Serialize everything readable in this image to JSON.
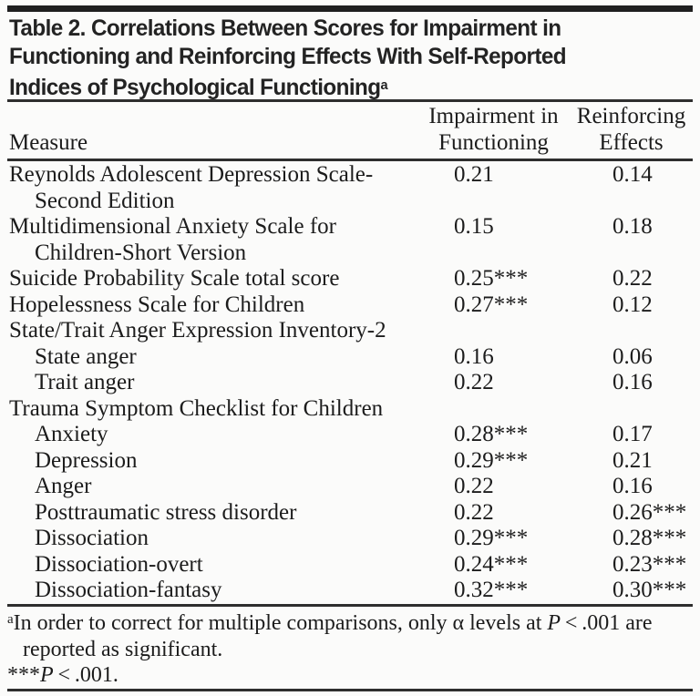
{
  "title": {
    "lines": [
      "Table 2. Correlations Between Scores for Impairment in",
      "Functioning and Reinforcing Effects With Self-Reported",
      "Indices of Psychological Functioning"
    ],
    "superscript": "a"
  },
  "table": {
    "header": {
      "measure": "Measure",
      "col1": [
        "Impairment in",
        "Functioning"
      ],
      "col2": [
        "Reinforcing",
        "Effects"
      ]
    },
    "rows": [
      {
        "lines": [
          "Reynolds Adolescent Depression Scale-",
          "Second Edition"
        ],
        "indent": false,
        "v1": "0.21",
        "v2": "0.14"
      },
      {
        "lines": [
          "Multidimensional Anxiety Scale for",
          "Children-Short Version"
        ],
        "indent": false,
        "v1": "0.15",
        "v2": "0.18"
      },
      {
        "lines": [
          "Suicide Probability Scale total score"
        ],
        "indent": false,
        "v1": "0.25***",
        "v2": "0.22"
      },
      {
        "lines": [
          "Hopelessness Scale for Children"
        ],
        "indent": false,
        "v1": "0.27***",
        "v2": "0.12"
      },
      {
        "lines": [
          "State/Trait Anger Expression Inventory-2"
        ],
        "indent": false,
        "v1": "",
        "v2": ""
      },
      {
        "lines": [
          "State anger"
        ],
        "indent": true,
        "v1": "0.16",
        "v2": "0.06"
      },
      {
        "lines": [
          "Trait anger"
        ],
        "indent": true,
        "v1": "0.22",
        "v2": "0.16"
      },
      {
        "lines": [
          "Trauma Symptom Checklist for Children"
        ],
        "indent": false,
        "v1": "",
        "v2": ""
      },
      {
        "lines": [
          "Anxiety"
        ],
        "indent": true,
        "v1": "0.28***",
        "v2": "0.17"
      },
      {
        "lines": [
          "Depression"
        ],
        "indent": true,
        "v1": "0.29***",
        "v2": "0.21"
      },
      {
        "lines": [
          "Anger"
        ],
        "indent": true,
        "v1": "0.22",
        "v2": "0.16"
      },
      {
        "lines": [
          "Posttraumatic stress disorder"
        ],
        "indent": true,
        "v1": "0.22",
        "v2": "0.26***"
      },
      {
        "lines": [
          "Dissociation"
        ],
        "indent": true,
        "v1": "0.29***",
        "v2": "0.28***"
      },
      {
        "lines": [
          "Dissociation-overt"
        ],
        "indent": true,
        "v1": "0.24***",
        "v2": "0.23***"
      },
      {
        "lines": [
          "Dissociation-fantasy"
        ],
        "indent": true,
        "v1": "0.32***",
        "v2": "0.30***"
      }
    ]
  },
  "footnotes": {
    "a_sup": "a",
    "a_before_p": "In order to correct for multiple comparisons, only α levels at ",
    "a_p": "P",
    "a_after_p": " < .001 are",
    "a_line2": "reported as significant.",
    "sig_stars": "***",
    "sig_p": "P",
    "sig_text": " < .001."
  },
  "colors": {
    "background": "#fbfbfa",
    "text": "#1c1c1c",
    "title_text": "#232323",
    "rule": "#2e2e2e",
    "rule_thick": "#1f1f1f"
  }
}
